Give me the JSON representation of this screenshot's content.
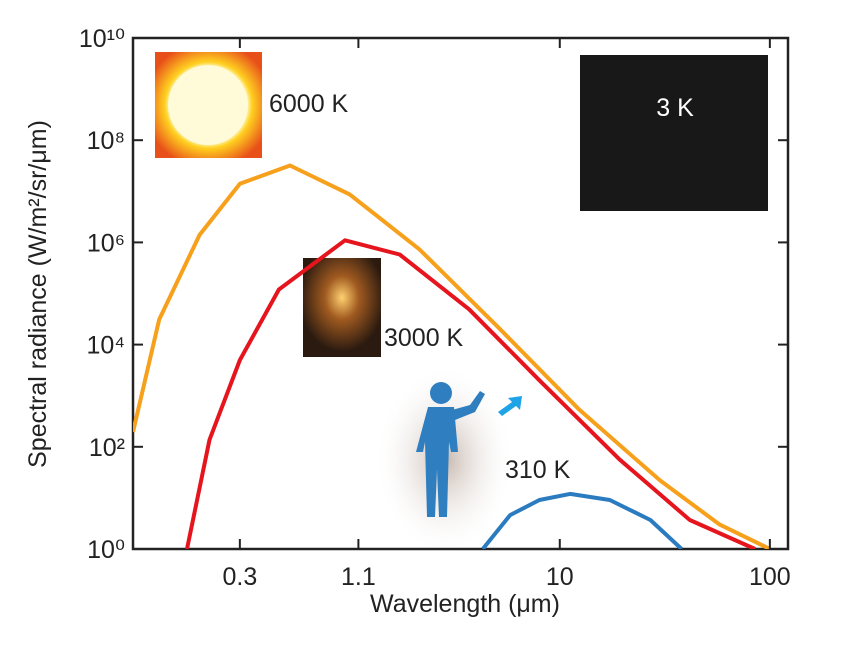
{
  "chart_data": {
    "type": "line",
    "y_label": "Spectral radiance (W/m²/sr/μm)",
    "x_label": "Wavelength (μm)",
    "xscale": "log",
    "yscale": "log",
    "xlim": [
      0.093,
      122
    ],
    "ylim": [
      1,
      10000000000
    ],
    "xticks": [
      0.3,
      1.1,
      10,
      100
    ],
    "yticks": [
      {
        "value": 1,
        "label": "10⁰"
      },
      {
        "value": 100,
        "label": "10²"
      },
      {
        "value": 10000,
        "label": "10⁴"
      },
      {
        "value": 1000000,
        "label": "10⁶"
      },
      {
        "value": 100000000,
        "label": "10⁸"
      },
      {
        "value": 10000000000,
        "label": "10¹⁰"
      }
    ],
    "series": [
      {
        "name": "6000 K",
        "color": "#f7a01c",
        "x": [
          0.093,
          0.124,
          0.193,
          0.3,
          0.52,
          1.0,
          2.15,
          5.2,
          12.4,
          30,
          57.7,
          100
        ],
        "values": [
          195,
          31000,
          1400000,
          14000000,
          32000000,
          8700000,
          730000,
          20000,
          530,
          22,
          3,
          1
        ]
      },
      {
        "name": "3000 K",
        "color": "#e6151d",
        "x": [
          0.168,
          0.215,
          0.3,
          0.46,
          0.95,
          1.73,
          3.7,
          8.0,
          19.3,
          41.6,
          85
        ],
        "values": [
          1,
          137,
          5000,
          120000,
          1100000,
          580000,
          49000,
          2000,
          56,
          3.7,
          1
        ]
      },
      {
        "name": "310 K",
        "color": "#2a7bbf",
        "x": [
          4.3,
          5.8,
          8.0,
          11.2,
          17.3,
          27,
          38
        ],
        "values": [
          1,
          4.6,
          9.1,
          12,
          9.1,
          3.7,
          1
        ]
      }
    ],
    "annotations": [
      "3 K"
    ]
  }
}
